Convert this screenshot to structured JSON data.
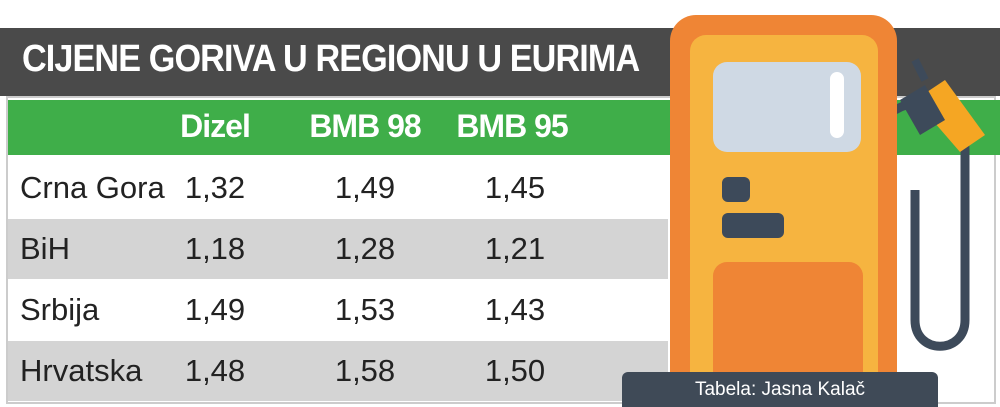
{
  "title": "CIJENE GORIVA U REGIONU U EURIMA",
  "table": {
    "header": [
      "Dizel",
      "BMB 98",
      "BMB 95"
    ],
    "rows": [
      [
        "Crna Gora",
        "1,32",
        "1,49",
        "1,45"
      ],
      [
        "BiH",
        "1,18",
        "1,28",
        "1,21"
      ],
      [
        "Srbija",
        "1,49",
        "1,53",
        "1,43"
      ],
      [
        "Hrvatska",
        "1,48",
        "1,58",
        "1,50"
      ]
    ]
  },
  "credit": "Tabela: Jasna Kalač"
}
